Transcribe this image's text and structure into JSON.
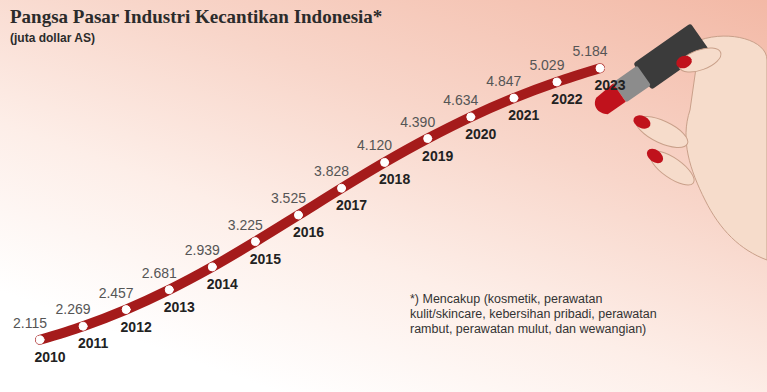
{
  "chart_data": {
    "type": "line",
    "title": "Pangsa Pasar Industri Kecantikan Indonesia*",
    "subtitle": "(juta dollar AS)",
    "annotation": "*) Mencakup (kosmetik, perawatan kulit/skincare, kebersihan pribadi, perawatan rambut, perawatan mulut, dan wewangian)",
    "categories": [
      "2010",
      "2011",
      "2012",
      "2013",
      "2014",
      "2015",
      "2016",
      "2017",
      "2018",
      "2019",
      "2020",
      "2021",
      "2022",
      "2023"
    ],
    "values": [
      2115,
      2269,
      2457,
      2681,
      2939,
      3225,
      3525,
      3828,
      4120,
      4390,
      4634,
      4847,
      5029,
      5184
    ],
    "value_labels": [
      "2.115",
      "2.269",
      "2.457",
      "2.681",
      "2.939",
      "3.225",
      "3.525",
      "3.828",
      "4.120",
      "4.390",
      "4.634",
      "4.847",
      "5.029",
      "5.184"
    ],
    "color": "#a51b1b",
    "ylim": [
      2000,
      5300
    ],
    "data_labels": true,
    "tick_labels": false,
    "grid": false,
    "marker": "circle"
  }
}
